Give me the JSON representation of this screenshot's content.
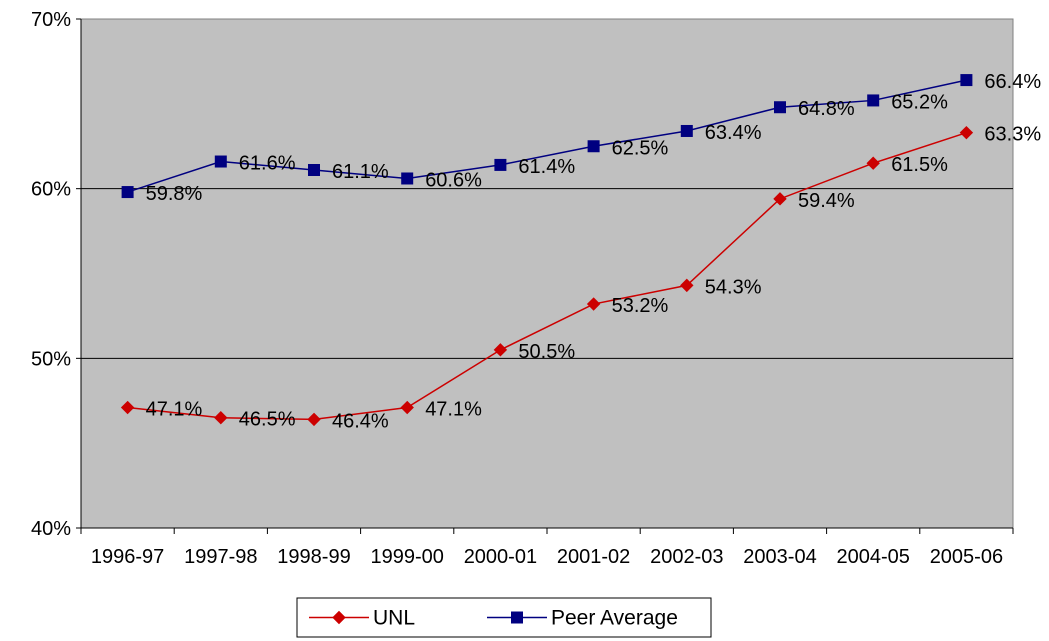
{
  "chart_data": {
    "type": "line",
    "categories": [
      "1996-97",
      "1997-98",
      "1998-99",
      "1999-00",
      "2000-01",
      "2001-02",
      "2002-03",
      "2003-04",
      "2004-05",
      "2005-06"
    ],
    "series": [
      {
        "name": "UNL",
        "values": [
          47.1,
          46.5,
          46.4,
          47.1,
          50.5,
          53.2,
          54.3,
          59.4,
          61.5,
          63.3
        ],
        "labels": [
          "47.1%",
          "46.5%",
          "46.4%",
          "47.1%",
          "50.5%",
          "53.2%",
          "54.3%",
          "59.4%",
          "61.5%",
          "63.3%"
        ],
        "color": "#cc0000",
        "marker": "diamond"
      },
      {
        "name": "Peer Average",
        "values": [
          59.8,
          61.6,
          61.1,
          60.6,
          61.4,
          62.5,
          63.4,
          64.8,
          65.2,
          66.4
        ],
        "labels": [
          "59.8%",
          "61.6%",
          "61.1%",
          "60.6%",
          "61.4%",
          "62.5%",
          "63.4%",
          "64.8%",
          "65.2%",
          "66.4%"
        ],
        "color": "#000080",
        "marker": "square"
      }
    ],
    "yticks": [
      "40%",
      "50%",
      "60%",
      "70%"
    ],
    "ytick_values": [
      40,
      50,
      60,
      70
    ],
    "ylim": [
      40,
      70
    ],
    "grid": true,
    "plot_background": "#c0c0c0",
    "legend_position": "bottom-center"
  }
}
